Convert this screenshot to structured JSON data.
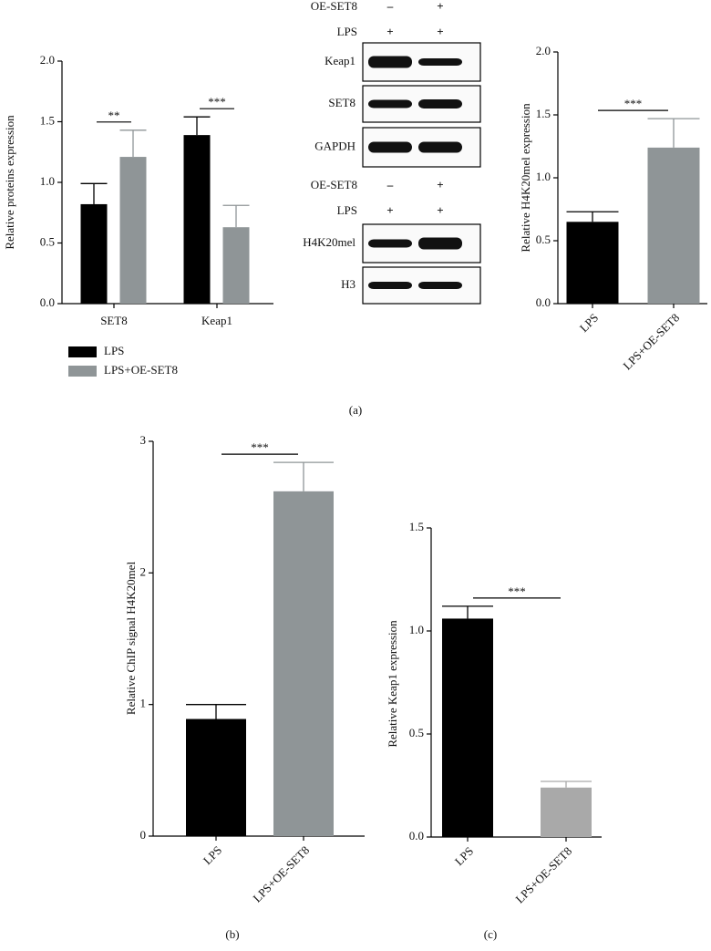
{
  "chart_data": [
    {
      "type": "bar",
      "y_label": "Relative proteins expression",
      "categories": [
        "SET8",
        "Keap1"
      ],
      "series": [
        {
          "name": "LPS",
          "color": "#000000",
          "values": [
            0.82,
            1.39
          ],
          "errors": [
            0.17,
            0.15
          ]
        },
        {
          "name": "LPS+OE-SET8",
          "color": "#8f9597",
          "values": [
            1.21,
            0.63
          ],
          "errors": [
            0.22,
            0.18
          ]
        }
      ],
      "ylim": [
        0,
        2
      ],
      "yticks": [
        {
          "value": 0,
          "label": "0.0"
        },
        0.5,
        {
          "value": 1,
          "label": "1.0"
        },
        1.5,
        {
          "value": 2,
          "label": "2.0"
        }
      ],
      "significance": [
        "**",
        "***"
      ]
    },
    {
      "type": "bar",
      "y_label": "Relative H4K20mel expression",
      "categories": [
        "LPS",
        "LPS+OE-SET8"
      ],
      "values": [
        0.65,
        1.24
      ],
      "errors": [
        0.08,
        0.23
      ],
      "colors": [
        "#000000",
        "#8f9597"
      ],
      "ylim": [
        0,
        2
      ],
      "yticks": [
        {
          "value": 0,
          "label": "0.0"
        },
        0.5,
        {
          "value": 1,
          "label": "1.0"
        },
        1.5,
        {
          "value": 2,
          "label": "2.0"
        }
      ],
      "significance": "***"
    },
    {
      "type": "bar",
      "y_label": "Relative ChIP signal H4K20mel",
      "categories": [
        "LPS",
        "LPS+OE-SET8"
      ],
      "values": [
        0.89,
        2.62
      ],
      "errors": [
        0.11,
        0.22
      ],
      "colors": [
        "#000000",
        "#8f9597"
      ],
      "ylim": [
        0,
        3
      ],
      "yticks": [
        0,
        1,
        2,
        3
      ],
      "significance": "***"
    },
    {
      "type": "bar",
      "y_label": "Relative Keap1 expression",
      "categories": [
        "LPS",
        "LPS+OE-SET8"
      ],
      "values": [
        1.06,
        0.24
      ],
      "errors": [
        0.06,
        0.03
      ],
      "colors": [
        "#000000",
        "#a9a9a9"
      ],
      "ylim": [
        0,
        1.5
      ],
      "yticks": [
        {
          "value": 0,
          "label": "0.0"
        },
        0.5,
        {
          "value": 1,
          "label": "1.0"
        },
        1.5
      ],
      "significance": "***"
    }
  ],
  "blot": {
    "groups": [
      {
        "conditions": [
          {
            "label": "OE-SET8",
            "signs": [
              "–",
              "+"
            ]
          },
          {
            "label": "LPS",
            "signs": [
              "+",
              "+"
            ]
          }
        ],
        "bands": [
          "Keap1",
          "SET8",
          "GAPDH"
        ]
      },
      {
        "conditions": [
          {
            "label": "OE-SET8",
            "signs": [
              "–",
              "+"
            ]
          },
          {
            "label": "LPS",
            "signs": [
              "+",
              "+"
            ]
          }
        ],
        "bands": [
          "H4K20mel",
          "H3"
        ]
      }
    ]
  },
  "panel_labels": [
    "(a)",
    "(b)",
    "(c)"
  ]
}
